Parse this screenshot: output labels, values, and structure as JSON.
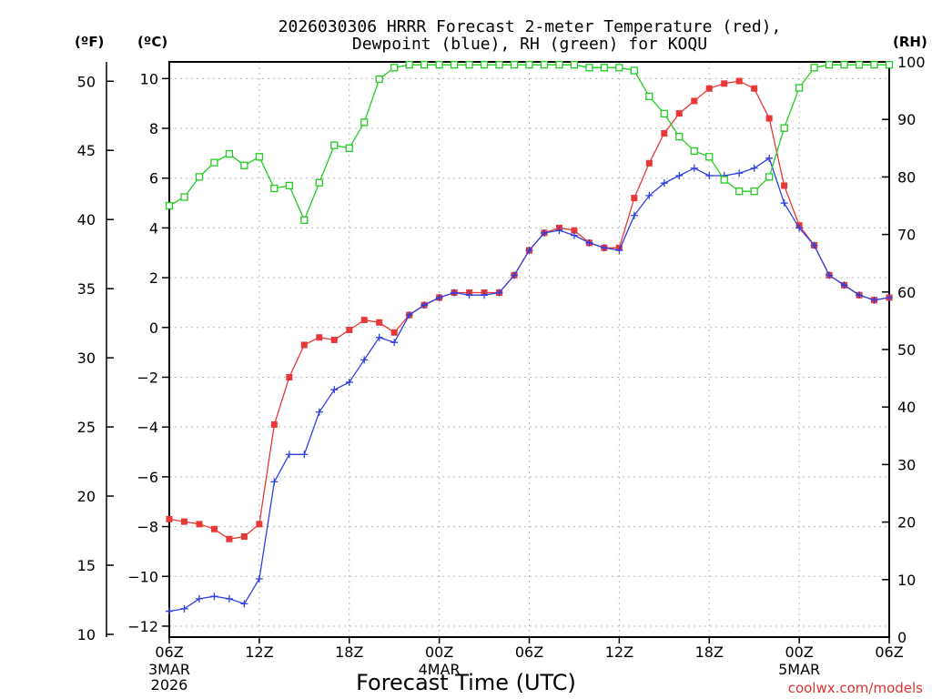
{
  "chart_data": {
    "type": "line",
    "title": "2026030306 HRRR Forecast 2-meter Temperature (red),",
    "title_line2": "Dewpoint (blue), RH (green) for KOQU",
    "xlabel": "Forecast Time (UTC)",
    "credit": "coolwx.com/models",
    "units": {
      "fahrenheit": "(ºF)",
      "celsius": "(ºC)",
      "rh": "(RH)"
    },
    "x_range_hours": [
      0,
      48
    ],
    "y_celsius_range": [
      -12.44,
      10.67
    ],
    "y_fahrenheit_range": [
      9.8,
      51.4
    ],
    "y_rh_range": [
      0,
      100
    ],
    "grid": true,
    "x_ticks": [
      {
        "hour": 0,
        "label": "06Z",
        "sub1": "3MAR",
        "sub2": "2026"
      },
      {
        "hour": 6,
        "label": "12Z",
        "sub1": "",
        "sub2": ""
      },
      {
        "hour": 12,
        "label": "18Z",
        "sub1": "",
        "sub2": ""
      },
      {
        "hour": 18,
        "label": "00Z",
        "sub1": "4MAR",
        "sub2": ""
      },
      {
        "hour": 24,
        "label": "06Z",
        "sub1": "",
        "sub2": ""
      },
      {
        "hour": 30,
        "label": "12Z",
        "sub1": "",
        "sub2": ""
      },
      {
        "hour": 36,
        "label": "18Z",
        "sub1": "",
        "sub2": ""
      },
      {
        "hour": 42,
        "label": "00Z",
        "sub1": "5MAR",
        "sub2": ""
      },
      {
        "hour": 48,
        "label": "06Z",
        "sub1": "",
        "sub2": ""
      }
    ],
    "c_ticks": [
      {
        "value": 10,
        "label": "10"
      },
      {
        "value": 8,
        "label": "8"
      },
      {
        "value": 6,
        "label": "6"
      },
      {
        "value": 4,
        "label": "4"
      },
      {
        "value": 2,
        "label": "2"
      },
      {
        "value": 0,
        "label": "0"
      },
      {
        "value": -2,
        "label": "−2"
      },
      {
        "value": -4,
        "label": "−4"
      },
      {
        "value": -6,
        "label": "−6"
      },
      {
        "value": -8,
        "label": "−8"
      },
      {
        "value": -10,
        "label": "−10"
      },
      {
        "value": -12,
        "label": "−12"
      }
    ],
    "f_ticks": [
      {
        "value": 50,
        "label": "50"
      },
      {
        "value": 45,
        "label": "45"
      },
      {
        "value": 40,
        "label": "40"
      },
      {
        "value": 35,
        "label": "35"
      },
      {
        "value": 30,
        "label": "30"
      },
      {
        "value": 25,
        "label": "25"
      },
      {
        "value": 20,
        "label": "20"
      },
      {
        "value": 15,
        "label": "15"
      },
      {
        "value": 10,
        "label": "10"
      }
    ],
    "rh_ticks": [
      {
        "value": 100,
        "label": "100"
      },
      {
        "value": 90,
        "label": "90"
      },
      {
        "value": 80,
        "label": "80"
      },
      {
        "value": 70,
        "label": "70"
      },
      {
        "value": 60,
        "label": "60"
      },
      {
        "value": 50,
        "label": "50"
      },
      {
        "value": 40,
        "label": "40"
      },
      {
        "value": 30,
        "label": "30"
      },
      {
        "value": 20,
        "label": "20"
      },
      {
        "value": 10,
        "label": "10"
      },
      {
        "value": 0,
        "label": "0"
      }
    ],
    "series": [
      {
        "name": "Temperature",
        "unit": "C",
        "color": "#e83838",
        "marker": "square-filled",
        "values": [
          -7.7,
          -7.8,
          -7.9,
          -8.1,
          -8.5,
          -8.4,
          -7.9,
          -3.9,
          -2.0,
          -0.7,
          -0.4,
          -0.5,
          -0.1,
          0.3,
          0.2,
          -0.2,
          0.5,
          0.9,
          1.2,
          1.4,
          1.4,
          1.4,
          1.4,
          2.1,
          3.1,
          3.8,
          4.0,
          3.9,
          3.4,
          3.2,
          3.2,
          5.2,
          6.6,
          7.8,
          8.6,
          9.1,
          9.6,
          9.8,
          9.9,
          9.6,
          8.4,
          5.7,
          4.1,
          3.3,
          2.1,
          1.7,
          1.3,
          1.1,
          1.2
        ]
      },
      {
        "name": "Dewpoint",
        "unit": "C",
        "color": "#3040e0",
        "marker": "plus",
        "values": [
          -11.4,
          -11.3,
          -10.9,
          -10.8,
          -10.9,
          -11.1,
          -10.1,
          -6.2,
          -5.1,
          -5.1,
          -3.4,
          -2.5,
          -2.2,
          -1.3,
          -0.4,
          -0.6,
          0.5,
          0.9,
          1.2,
          1.4,
          1.3,
          1.3,
          1.4,
          2.1,
          3.1,
          3.8,
          3.9,
          3.7,
          3.4,
          3.2,
          3.1,
          4.5,
          5.3,
          5.8,
          6.1,
          6.4,
          6.1,
          6.1,
          6.2,
          6.4,
          6.8,
          5.0,
          4.0,
          3.3,
          2.1,
          1.7,
          1.3,
          1.1,
          1.2
        ]
      },
      {
        "name": "RH",
        "unit": "%",
        "color": "#22cc22",
        "marker": "square-open",
        "values": [
          75,
          76.5,
          80,
          82.5,
          84,
          82,
          83.5,
          78,
          78.5,
          72.5,
          79,
          85.5,
          85,
          89.5,
          97,
          99,
          99.5,
          99.5,
          99.5,
          99.5,
          99.5,
          99.5,
          99.5,
          99.5,
          99.5,
          99.5,
          99.5,
          99.5,
          99,
          99,
          99,
          98.5,
          94,
          91,
          87,
          84.5,
          83.5,
          79.5,
          77.5,
          77.5,
          80,
          88.5,
          95.5,
          99,
          99.5,
          99.5,
          99.5,
          99.5,
          99.5
        ]
      }
    ]
  }
}
